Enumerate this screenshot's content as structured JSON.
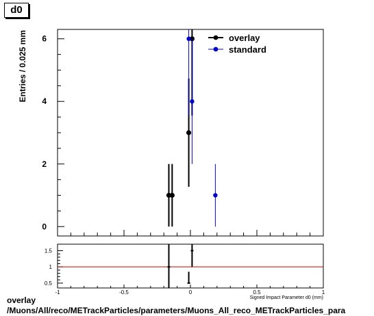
{
  "title": "d0",
  "footer": {
    "line1": "overlay",
    "line2": "/Muons/All/reco/METrackParticles/parameters/Muons_All_reco_METrackParticles_para"
  },
  "chart_data": {
    "type": "scatter",
    "ylabel": "Entries / 0.025 mm",
    "xlabel": "Signed Impact Parameter d0 (mm)",
    "xlim": [
      -1,
      1
    ],
    "ylim": [
      -0.3,
      6.3
    ],
    "x_ticks": [
      -1,
      -0.5,
      0,
      0.5,
      1
    ],
    "x_tick_labels": [
      "-1",
      "-0.5",
      "0",
      "0.5",
      "1"
    ],
    "y_ticks": [
      0,
      2,
      4,
      6
    ],
    "y_tick_labels": [
      "0",
      "2",
      "4",
      "6"
    ],
    "legend_position": "top-right",
    "series": [
      {
        "name": "overlay",
        "color": "#000000",
        "points": [
          {
            "x": -0.1625,
            "y": 1,
            "err": 1
          },
          {
            "x": -0.1375,
            "y": 1,
            "err": 1
          },
          {
            "x": -0.0125,
            "y": 3,
            "err": 1.73
          },
          {
            "x": 0.0125,
            "y": 6,
            "err": 2.45
          }
        ]
      },
      {
        "name": "standard",
        "color": "#0000cc",
        "points": [
          {
            "x": -0.0125,
            "y": 6,
            "err": 2.45
          },
          {
            "x": 0.0125,
            "y": 4,
            "err": 2
          },
          {
            "x": 0.1875,
            "y": 1,
            "err": 1
          }
        ]
      }
    ],
    "ratio": {
      "ylim": [
        0.35,
        1.7
      ],
      "y_ticks": [
        0.5,
        1,
        1.5
      ],
      "y_tick_labels": [
        "0.5",
        "1",
        "1.5"
      ],
      "reference": 1,
      "reference_color": "#cc0000",
      "segments": [
        {
          "x": -0.1625,
          "y": 1.0,
          "lo": 0.35,
          "hi": 1.7
        },
        {
          "x": -0.0125,
          "y": 0.5,
          "lo": 0.5,
          "hi": 0.85
        },
        {
          "x": 0.0125,
          "y": 1.5,
          "lo": 1.0,
          "hi": 1.7
        }
      ]
    }
  }
}
